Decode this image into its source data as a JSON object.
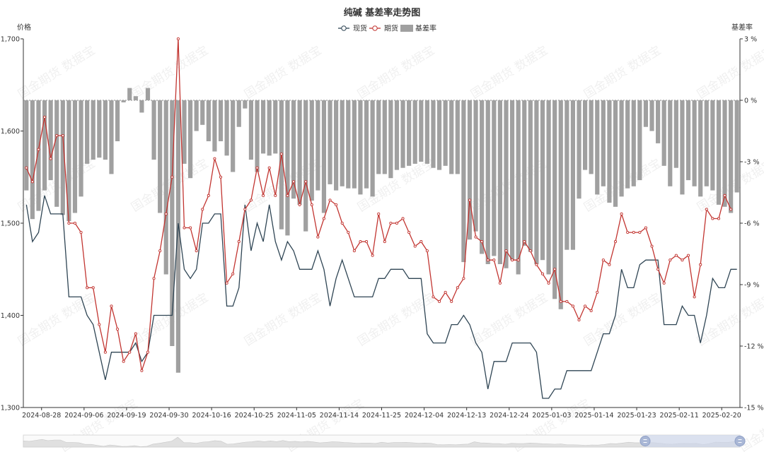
{
  "chart_data": {
    "type": "line",
    "title": "纯碱 基差率走势图",
    "ylabel_left": "价格",
    "ylabel_right": "基差率",
    "ylim_left": [
      1300,
      1700
    ],
    "yticks_left": [
      "1,300",
      "1,400",
      "1,500",
      "1,600",
      "1,700"
    ],
    "ylim_right": [
      -15,
      3
    ],
    "yticks_right": [
      "-15 %",
      "-12 %",
      "-9 %",
      "-6 %",
      "-3 %",
      "0 %",
      "3 %"
    ],
    "xtick_labels": [
      "2024-08-28",
      "2024-09-06",
      "2024-09-19",
      "2024-09-30",
      "2024-10-16",
      "2024-10-25",
      "2024-11-05",
      "2024-11-14",
      "2024-11-25",
      "2024-12-04",
      "2024-12-13",
      "2024-12-24",
      "2025-01-03",
      "2025-01-14",
      "2025-01-23",
      "2025-02-11",
      "2025-02-20"
    ],
    "legend": {
      "position": "top-center",
      "items": [
        {
          "label": "现货",
          "color": "#2f4554"
        },
        {
          "label": "期货",
          "color": "#c23531"
        },
        {
          "label": "基差率",
          "color": "#a0a0a0"
        }
      ]
    },
    "series": [
      {
        "name": "现货",
        "type": "line",
        "color": "#2f4554",
        "values": [
          1520,
          1480,
          1490,
          1530,
          1510,
          1510,
          1510,
          1420,
          1420,
          1420,
          1400,
          1390,
          1360,
          1330,
          1360,
          1360,
          1360,
          1360,
          1370,
          1350,
          1360,
          1400,
          1400,
          1400,
          1400,
          1500,
          1450,
          1440,
          1450,
          1500,
          1500,
          1510,
          1510,
          1410,
          1410,
          1430,
          1520,
          1470,
          1500,
          1480,
          1520,
          1480,
          1460,
          1480,
          1470,
          1450,
          1450,
          1450,
          1470,
          1450,
          1410,
          1440,
          1460,
          1440,
          1420,
          1420,
          1420,
          1420,
          1440,
          1440,
          1450,
          1450,
          1450,
          1440,
          1440,
          1440,
          1380,
          1370,
          1370,
          1370,
          1390,
          1390,
          1400,
          1390,
          1370,
          1360,
          1320,
          1350,
          1350,
          1350,
          1370,
          1370,
          1370,
          1370,
          1360,
          1310,
          1310,
          1320,
          1320,
          1340,
          1340,
          1340,
          1340,
          1340,
          1360,
          1380,
          1380,
          1400,
          1450,
          1430,
          1430,
          1455,
          1460,
          1460,
          1460,
          1390,
          1390,
          1390,
          1410,
          1400,
          1400,
          1370,
          1400,
          1440,
          1430,
          1430,
          1450,
          1450
        ]
      },
      {
        "name": "期货",
        "type": "line",
        "color": "#c23531",
        "values": [
          1560,
          1545,
          1580,
          1615,
          1570,
          1595,
          1595,
          1500,
          1500,
          1490,
          1430,
          1430,
          1390,
          1360,
          1410,
          1385,
          1350,
          1360,
          1380,
          1340,
          1360,
          1440,
          1470,
          1510,
          1550,
          1700,
          1495,
          1495,
          1470,
          1515,
          1530,
          1570,
          1550,
          1435,
          1445,
          1480,
          1515,
          1525,
          1560,
          1530,
          1560,
          1530,
          1575,
          1530,
          1545,
          1520,
          1545,
          1520,
          1485,
          1505,
          1525,
          1520,
          1500,
          1490,
          1470,
          1480,
          1480,
          1465,
          1510,
          1480,
          1500,
          1500,
          1505,
          1490,
          1475,
          1480,
          1470,
          1420,
          1415,
          1425,
          1415,
          1430,
          1440,
          1525,
          1485,
          1480,
          1460,
          1460,
          1435,
          1470,
          1460,
          1460,
          1480,
          1470,
          1455,
          1445,
          1435,
          1450,
          1415,
          1415,
          1410,
          1395,
          1410,
          1405,
          1425,
          1460,
          1455,
          1480,
          1510,
          1490,
          1490,
          1490,
          1495,
          1475,
          1450,
          1435,
          1460,
          1465,
          1460,
          1465,
          1420,
          1455,
          1515,
          1505,
          1505,
          1530,
          1515
        ]
      },
      {
        "name": "基差率",
        "type": "bar",
        "color": "#a0a0a0",
        "axis": "right",
        "values": [
          -4.4,
          -5.8,
          -5.4,
          -4.4,
          -3.9,
          -5.2,
          -5.6,
          -5.9,
          -5.5,
          -4.7,
          -3.1,
          -2.9,
          -2.8,
          -2.9,
          -3.6,
          -2.0,
          -0.1,
          0.6,
          0.2,
          -0.6,
          0.6,
          -2.9,
          -5.5,
          -8.5,
          -12.0,
          -13.3,
          -3.1,
          -3.8,
          -1.5,
          -1.2,
          -2.0,
          -2.5,
          -2.0,
          -2.7,
          -3.5,
          -1.3,
          -0.4,
          -2.9,
          -3.5,
          -2.6,
          -2.7,
          -2.6,
          -6.3,
          -6.6,
          -4.8,
          -5.1,
          -6.4,
          -4.9,
          -4.4,
          -5.5,
          -4.1,
          -4.4,
          -4.2,
          -4.3,
          -4.3,
          -4.6,
          -4.3,
          -4.7,
          -3.6,
          -3.6,
          -3.8,
          -3.4,
          -3.3,
          -3.2,
          -3.1,
          -3.0,
          -3.1,
          -3.3,
          -3.4,
          -3.2,
          -3.6,
          -3.6,
          -7.9,
          -6.8,
          -6.4,
          -7.5,
          -8.0,
          -7.6,
          -8.0,
          -8.2,
          -7.8,
          -8.5,
          -7.1,
          -7.4,
          -8.0,
          -7.8,
          -8.5,
          -9.7,
          -10.2,
          -7.3,
          -7.3,
          -4.8,
          -3.4,
          -3.6,
          -4.6,
          -4.2,
          -5.0,
          -5.2,
          -4.7,
          -4.3,
          -4.2,
          -3.9,
          -1.3,
          -1.5,
          -2.1,
          -3.2,
          -4.2,
          -3.3,
          -4.6,
          -3.9,
          -4.2,
          -4.7,
          -4.2,
          -4.4,
          -5.1,
          -5.2,
          -5.5,
          -4.5
        ]
      }
    ]
  },
  "watermark": "国金期货 数据宝"
}
